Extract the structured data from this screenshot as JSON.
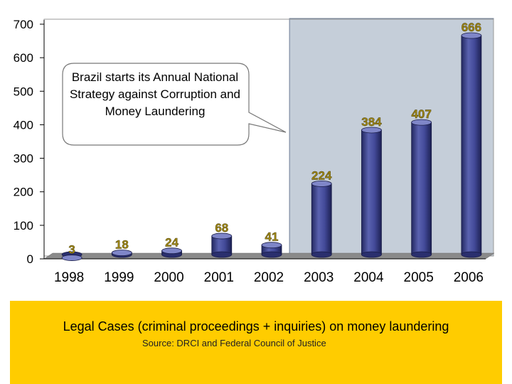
{
  "chart_data": {
    "type": "bar",
    "categories": [
      "1998",
      "1999",
      "2000",
      "2001",
      "2002",
      "2003",
      "2004",
      "2005",
      "2006"
    ],
    "values": [
      3,
      18,
      24,
      68,
      41,
      224,
      384,
      407,
      666
    ],
    "data_labels": [
      "3",
      "18",
      "24",
      "68",
      "41",
      "224",
      "384",
      "407",
      "666"
    ],
    "ylim": [
      0,
      700
    ],
    "yticks": [
      0,
      100,
      200,
      300,
      400,
      500,
      600,
      700
    ],
    "ytick_labels": [
      "0",
      "100",
      "200",
      "300",
      "400",
      "500",
      "600",
      "700"
    ],
    "highlight_start_category": "2003",
    "annotation": "Brazil starts its Annual National Strategy against Corruption and Money Laundering",
    "bar_color": "#3b4188",
    "highlight_color": "#c5ced9"
  },
  "footer": {
    "caption": "Legal Cases (criminal proceedings + inquiries) on money laundering",
    "source": "Source: DRCI and Federal Council of Justice",
    "background": "#ffcc00"
  }
}
